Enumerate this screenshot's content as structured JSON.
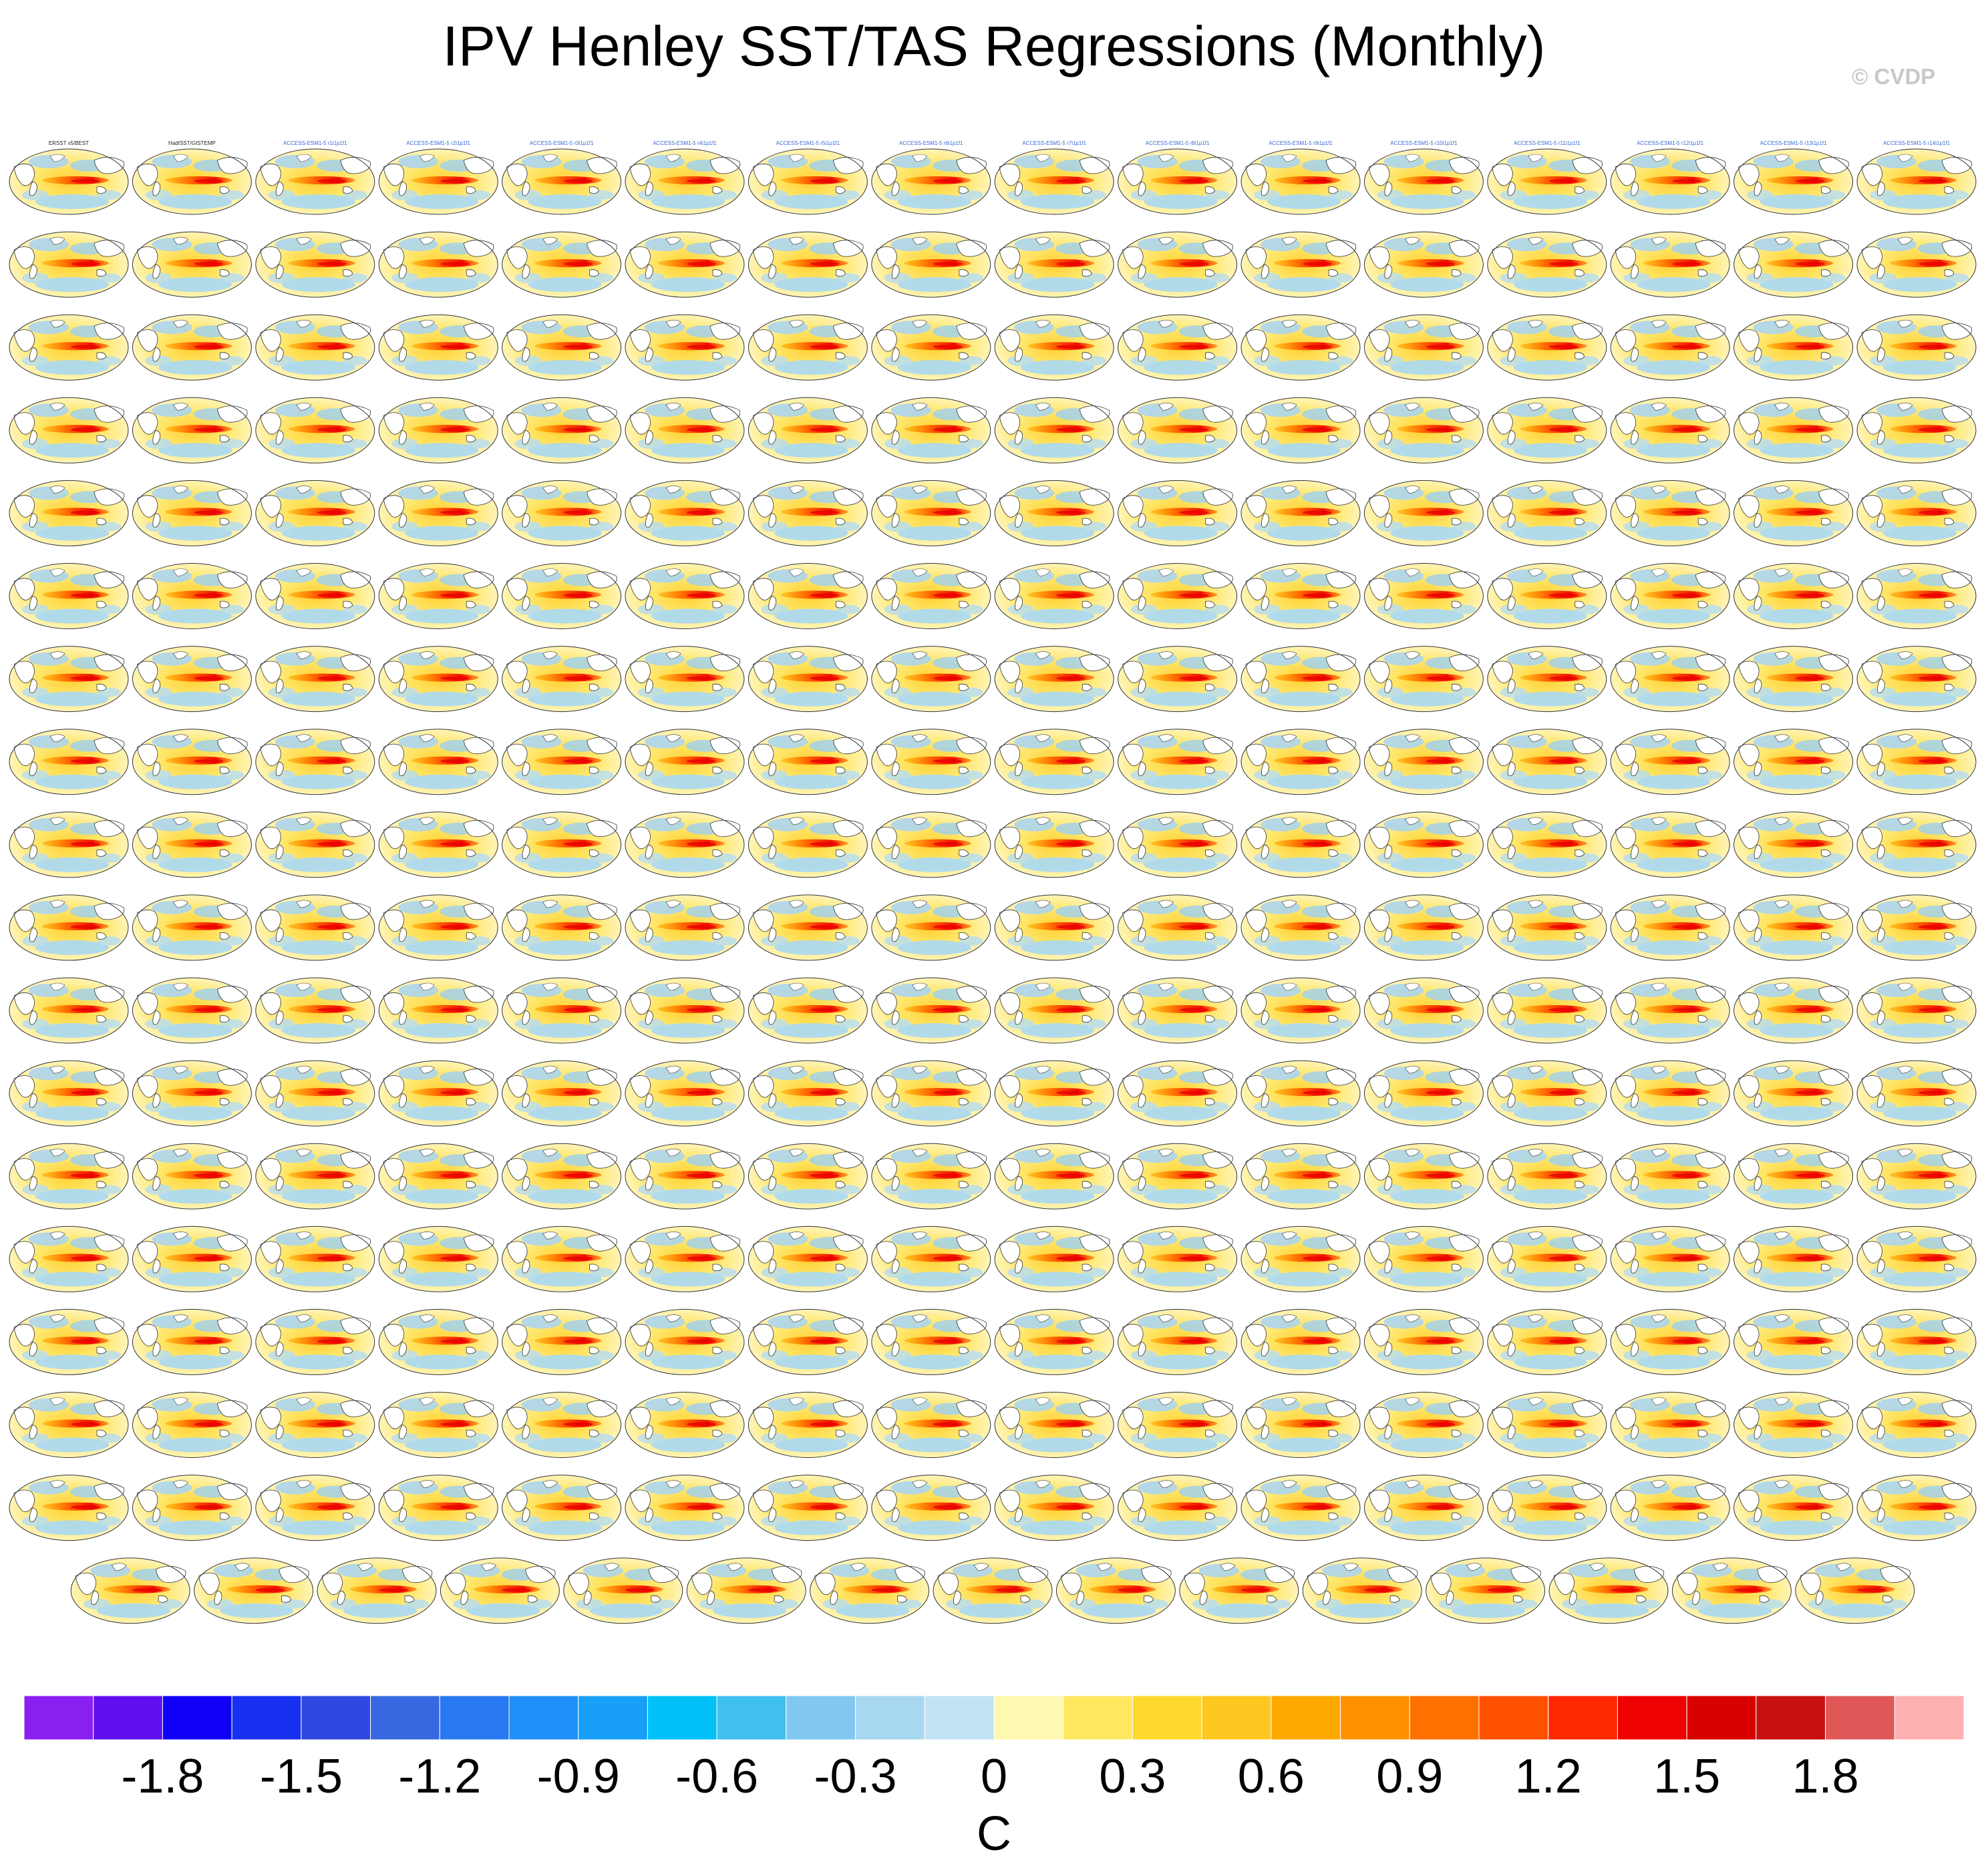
{
  "title": "IPV Henley SST/TAS Regressions (Monthly)",
  "credit": "© CVDP",
  "colors": {
    "background": "#ffffff",
    "land": "#ffffff",
    "coast": "#333333"
  },
  "chart_data": {
    "type": "heatmap",
    "title": "IPV Henley SST/TAS Regressions (Monthly)",
    "layout": "small multiples, 16 panels per row, 17 full rows plus a final row of 15 panels",
    "panel_count": 287,
    "unit": "C",
    "colorbar": {
      "tick_labels": [
        "-1.8",
        "-1.5",
        "-1.2",
        "-0.9",
        "-0.6",
        "-0.3",
        "0",
        "0.3",
        "0.6",
        "0.9",
        "1.2",
        "1.5",
        "1.8"
      ],
      "tick_values": [
        -1.8,
        -1.5,
        -1.2,
        -0.9,
        -0.6,
        -0.3,
        0,
        0.3,
        0.6,
        0.9,
        1.2,
        1.5,
        1.8
      ],
      "levels": [
        -2.1,
        -1.95,
        -1.8,
        -1.65,
        -1.5,
        -1.35,
        -1.2,
        -1.05,
        -0.9,
        -0.75,
        -0.6,
        -0.45,
        -0.3,
        -0.15,
        0,
        0.15,
        0.3,
        0.45,
        0.6,
        0.75,
        0.9,
        1.05,
        1.2,
        1.35,
        1.5,
        1.65,
        1.8,
        1.95,
        2.1
      ],
      "colors": [
        "#8a20f0",
        "#6010f0",
        "#1000f8",
        "#1830f0",
        "#3048e0",
        "#3868e0",
        "#2878f0",
        "#2090f8",
        "#18a0f8",
        "#00c0f8",
        "#40c0f0",
        "#80c8f0",
        "#a8d8f0",
        "#c0e4f4",
        "#fff8b0",
        "#ffe860",
        "#ffd830",
        "#ffc820",
        "#ffa800",
        "#ff9000",
        "#ff7000",
        "#ff5000",
        "#ff2800",
        "#f00000",
        "#d80000",
        "#c81010",
        "#e05858",
        "#ffb0b0"
      ]
    },
    "panels": [
      {
        "label": "ERSST v5/BEST"
      },
      {
        "label": "HadISST/GISTEMP"
      },
      {
        "label": "ACCESS-ESM1-5 r1i1p1f1"
      },
      {
        "label": "ACCESS-ESM1-5 r2i1p1f1"
      },
      {
        "label": "ACCESS-ESM1-5 r3i1p1f1"
      },
      {
        "label": "ACCESS-ESM1-5 r4i1p1f1"
      },
      {
        "label": "ACCESS-ESM1-5 r5i1p1f1"
      },
      {
        "label": "ACCESS-ESM1-5 r6i1p1f1"
      },
      {
        "label": "ACCESS-ESM1-5 r7i1p1f1"
      },
      {
        "label": "ACCESS-ESM1-5 r8i1p1f1"
      },
      {
        "label": "ACCESS-ESM1-5 r9i1p1f1"
      },
      {
        "label": "ACCESS-ESM1-5 r10i1p1f1"
      },
      {
        "label": "ACCESS-ESM1-5 r11i1p1f1"
      },
      {
        "label": "ACCESS-ESM1-5 r12i1p1f1"
      },
      {
        "label": "ACCESS-ESM1-5 r13i1p1f1"
      },
      {
        "label": "ACCESS-ESM1-5 r14i1p1f1"
      }
    ]
  }
}
